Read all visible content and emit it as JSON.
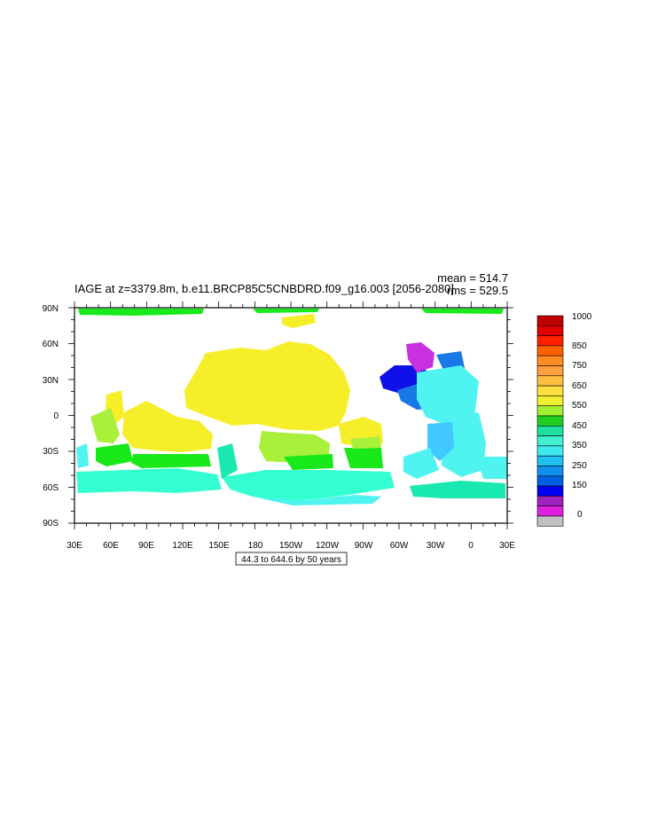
{
  "title": "IAGE at z=3379.8m, b.e11.BRCP85C5CNBDRD.f09_g16.003 [2056-2080]",
  "stats": {
    "mean": "mean = 514.7",
    "rms": "rms = 529.5"
  },
  "info_label": "44.3 to 644.6 by 50 years",
  "lat_labels": [
    "90N",
    "60N",
    "30N",
    "0",
    "30S",
    "60S",
    "90S"
  ],
  "lon_labels": [
    "30E",
    "60E",
    "90E",
    "120E",
    "150E",
    "180",
    "150W",
    "120W",
    "90W",
    "60W",
    "30W",
    "0",
    "30E"
  ],
  "colorbar": {
    "labels": [
      "1000",
      "850",
      "750",
      "650",
      "550",
      "450",
      "350",
      "250",
      "150",
      "0"
    ],
    "colors": [
      "#c00000",
      "#e00000",
      "#ff2000",
      "#ff6000",
      "#ff8c20",
      "#ffa040",
      "#ffc040",
      "#ffe040",
      "#f0f030",
      "#a0f030",
      "#20d020",
      "#20e0a0",
      "#40f0d0",
      "#40e8f0",
      "#20c0f0",
      "#1090f0",
      "#0060e0",
      "#0000f0",
      "#a020c0",
      "#e020e0",
      "#c0c0c0"
    ]
  },
  "colors": {
    "yellow": "#f7ee2a",
    "lime": "#a8f03a",
    "green": "#19e81a",
    "cyan": "#33ffd0",
    "aqua": "#4ff3f0",
    "teal": "#19e8b0",
    "sky": "#40c8ff",
    "blue": "#1878e6",
    "deepblue": "#1010e8",
    "magenta": "#c830e0",
    "pink": "#e040e8"
  }
}
